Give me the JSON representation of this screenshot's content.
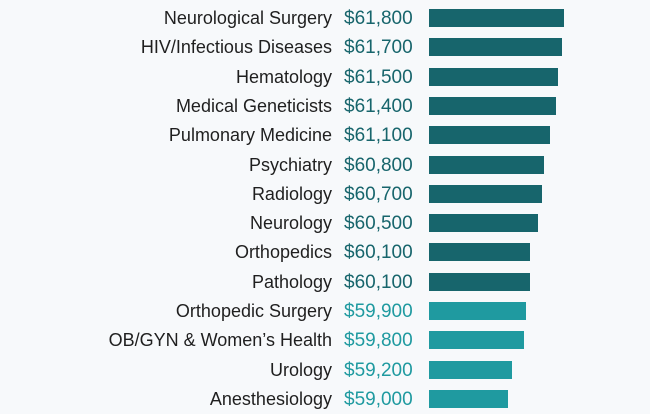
{
  "chart_data": {
    "type": "bar",
    "orientation": "horizontal",
    "categories": [
      "Neurological Surgery",
      "HIV/Infectious Diseases",
      "Hematology",
      "Medical Geneticists",
      "Pulmonary Medicine",
      "Psychiatry",
      "Radiology",
      "Neurology",
      "Orthopedics",
      "Pathology",
      "Orthopedic Surgery",
      "OB/GYN & Women’s Health",
      "Urology",
      "Anesthesiology"
    ],
    "values": [
      61800,
      61700,
      61500,
      61400,
      61100,
      60800,
      60700,
      60500,
      60100,
      60100,
      59900,
      59800,
      59200,
      59000
    ],
    "value_labels": [
      "$61,800",
      "$61,700",
      "$61,500",
      "$61,400",
      "$61,100",
      "$60,800",
      "$60,700",
      "$60,500",
      "$60,100",
      "$60,100",
      "$59,900",
      "$59,800",
      "$59,200",
      "$59,000"
    ],
    "xlim": [
      0,
      61800
    ],
    "grid": false,
    "colors": {
      "dark_bar": "#17656c",
      "light_bar": "#1f9aa0",
      "dark_value_text": "#17656c",
      "light_value_text": "#1f9aa0"
    }
  }
}
